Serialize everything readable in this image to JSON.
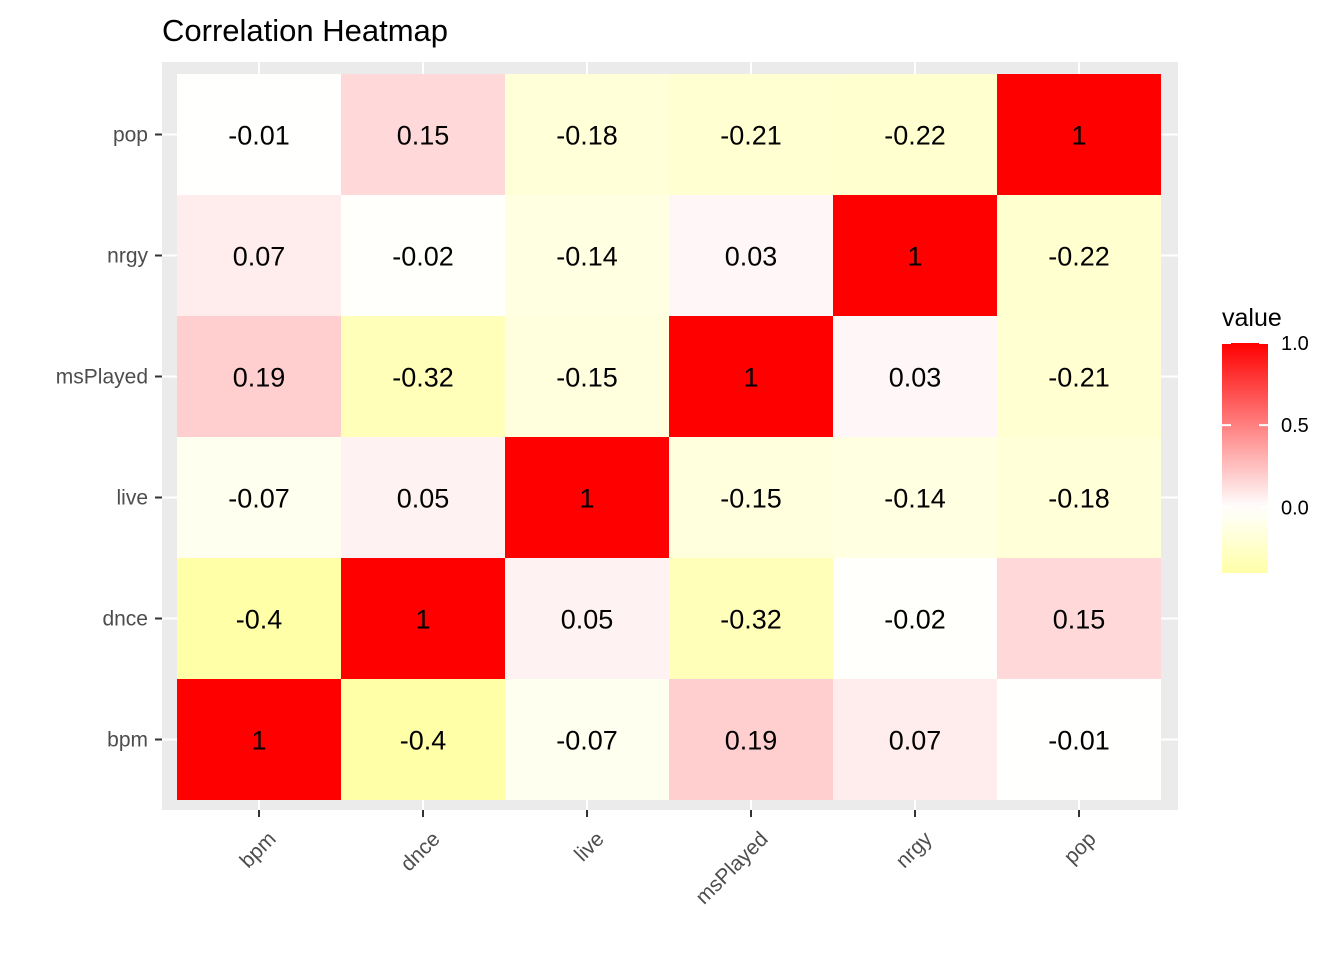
{
  "chart_data": {
    "type": "heatmap",
    "title": "Correlation Heatmap",
    "xlabel": "",
    "ylabel": "",
    "x_categories": [
      "bpm",
      "dnce",
      "live",
      "msPlayed",
      "nrgy",
      "pop"
    ],
    "y_categories": [
      "bpm",
      "dnce",
      "live",
      "msPlayed",
      "nrgy",
      "pop"
    ],
    "values": [
      [
        1,
        -0.4,
        -0.07,
        0.19,
        0.07,
        -0.01
      ],
      [
        -0.4,
        1,
        0.05,
        -0.32,
        -0.02,
        0.15
      ],
      [
        -0.07,
        0.05,
        1,
        -0.15,
        -0.14,
        -0.18
      ],
      [
        0.19,
        -0.32,
        -0.15,
        1,
        0.03,
        -0.21
      ],
      [
        0.07,
        -0.02,
        -0.14,
        0.03,
        1,
        -0.22
      ],
      [
        -0.01,
        0.15,
        -0.18,
        -0.21,
        -0.22,
        1
      ]
    ],
    "cell_labels": [
      [
        "1",
        "-0.4",
        "-0.07",
        "0.19",
        "0.07",
        "-0.01"
      ],
      [
        "-0.4",
        "1",
        "0.05",
        "-0.32",
        "-0.02",
        "0.15"
      ],
      [
        "-0.07",
        "0.05",
        "1",
        "-0.15",
        "-0.14",
        "-0.18"
      ],
      [
        "0.19",
        "-0.32",
        "-0.15",
        "1",
        "0.03",
        "-0.21"
      ],
      [
        "0.07",
        "-0.02",
        "-0.14",
        "0.03",
        "1",
        "-0.22"
      ],
      [
        "-0.01",
        "0.15",
        "-0.18",
        "-0.21",
        "-0.22",
        "1"
      ]
    ],
    "color_scale": {
      "low_color": "#ffffa8",
      "mid_color": "#ffffff",
      "high_color": "#ff0000",
      "low_value": -0.4,
      "mid_value": 0,
      "high_value": 1
    },
    "legend": {
      "title": "value",
      "placement": "right",
      "breaks": [
        1.0,
        0.5,
        0.0
      ],
      "break_labels": [
        "1.0",
        "0.5",
        "0.0"
      ]
    },
    "panel_background": "#ebebeb",
    "grid": true
  }
}
